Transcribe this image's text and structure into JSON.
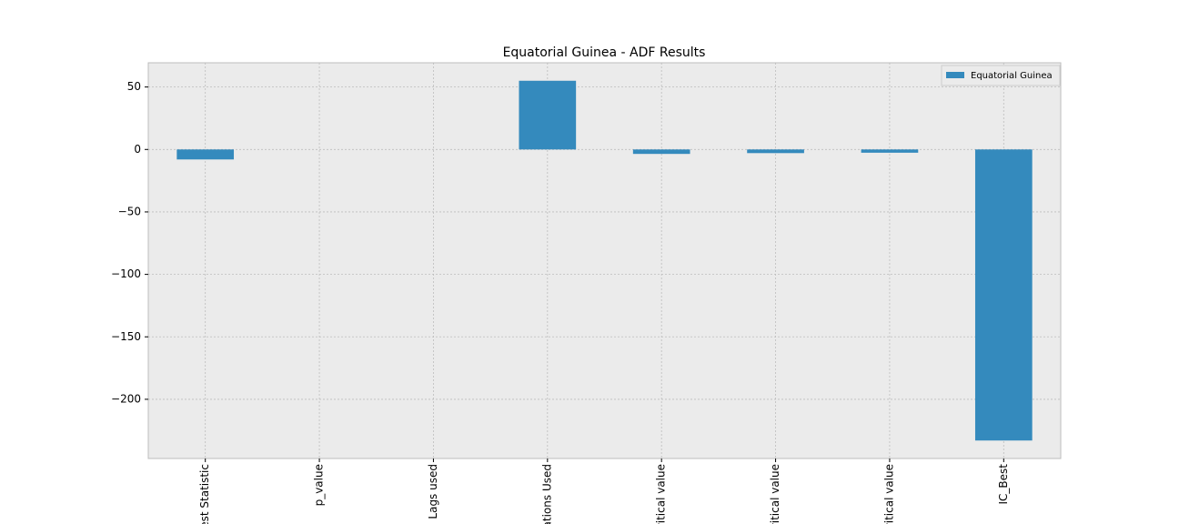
{
  "chart_data": {
    "type": "bar",
    "title": "Equatorial Guinea - ADF Results",
    "categories": [
      "est Statistic",
      "p_value",
      "Lags used",
      "ations Used",
      "ritical value",
      "ritical value",
      "ritical value",
      "IC_Best"
    ],
    "series": [
      {
        "name": "Equatorial Guinea",
        "color": "#348abd",
        "values": [
          -8,
          0,
          0,
          55,
          -3.56,
          -2.92,
          -2.6,
          -233
        ]
      }
    ],
    "ylim": [
      -247.4,
      69.4
    ],
    "yticks": [
      {
        "value": -200,
        "label": "−200"
      },
      {
        "value": -150,
        "label": "−150"
      },
      {
        "value": -100,
        "label": "−100"
      },
      {
        "value": -50,
        "label": "−50"
      },
      0,
      50
    ],
    "grid": true,
    "legend": "upper right"
  }
}
